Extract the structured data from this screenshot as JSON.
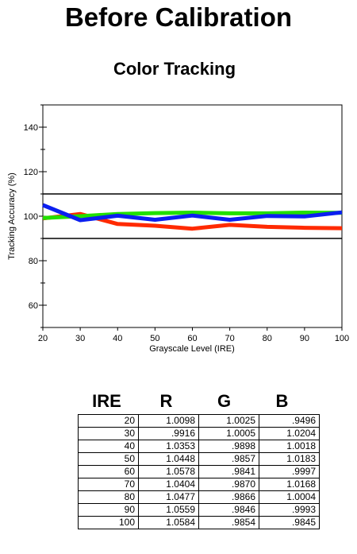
{
  "page_title": "Before Calibration",
  "chart_data": {
    "type": "line",
    "title": "Color Tracking",
    "xlabel": "Grayscale Level (IRE)",
    "ylabel": "Tracking Accuracy (%)",
    "x": [
      20,
      30,
      40,
      50,
      60,
      70,
      80,
      90,
      100
    ],
    "xlim": [
      20,
      100
    ],
    "ylim": [
      50,
      150
    ],
    "x_ticks": [
      "20",
      "30",
      "40",
      "50",
      "60",
      "70",
      "80",
      "90",
      "100"
    ],
    "y_ticks": [
      "60",
      "80",
      "100",
      "120",
      "140"
    ],
    "y_tick_values": [
      60,
      80,
      100,
      120,
      140
    ],
    "reference_lines": [
      90,
      110
    ],
    "grid": false,
    "series": [
      {
        "color": "#ff2a00",
        "values": [
          99.0,
          101.0,
          96.5,
          95.7,
          94.4,
          96.1,
          95.2,
          94.8,
          94.6
        ]
      },
      {
        "color": "#22e000",
        "values": [
          99.2,
          100.0,
          101.0,
          101.4,
          101.6,
          101.3,
          101.3,
          101.6,
          101.5
        ]
      },
      {
        "color": "#0b1ff0",
        "values": [
          105.0,
          98.2,
          100.2,
          98.4,
          100.3,
          98.4,
          100.1,
          99.9,
          101.7
        ]
      }
    ]
  },
  "table": {
    "headers": [
      "IRE",
      "R",
      "G",
      "B"
    ],
    "rows": [
      [
        "20",
        "1.0098",
        "1.0025",
        ".9496"
      ],
      [
        "30",
        ".9916",
        "1.0005",
        "1.0204"
      ],
      [
        "40",
        "1.0353",
        ".9898",
        "1.0018"
      ],
      [
        "50",
        "1.0448",
        ".9857",
        "1.0183"
      ],
      [
        "60",
        "1.0578",
        ".9841",
        ".9997"
      ],
      [
        "70",
        "1.0404",
        ".9870",
        "1.0168"
      ],
      [
        "80",
        "1.0477",
        ".9866",
        "1.0004"
      ],
      [
        "90",
        "1.0559",
        ".9846",
        ".9993"
      ],
      [
        "100",
        "1.0584",
        ".9854",
        ".9845"
      ]
    ]
  }
}
